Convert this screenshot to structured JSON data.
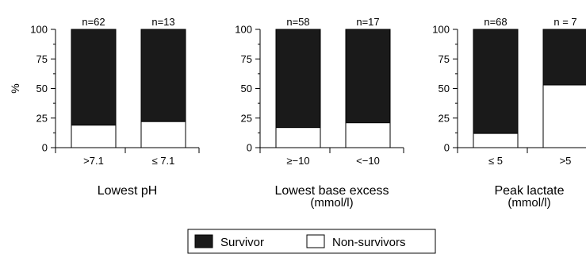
{
  "chart_data": [
    {
      "type": "bar",
      "stacked": true,
      "title": "Lowest pH",
      "subtitle": "",
      "ylabel": "%",
      "ylim": [
        0,
        100
      ],
      "yticks": [
        "0",
        "25",
        "50",
        "75",
        "100"
      ],
      "categories": [
        ">7.1",
        "≤ 7.1"
      ],
      "n_labels": [
        "n=62",
        "n=13"
      ],
      "series": [
        {
          "name": "Non-survivors",
          "values": [
            19,
            22
          ]
        },
        {
          "name": "Survivor",
          "values": [
            81,
            78
          ]
        }
      ]
    },
    {
      "type": "bar",
      "stacked": true,
      "title": "Lowest base excess",
      "subtitle": "(mmol/l)",
      "ylabel": "",
      "ylim": [
        0,
        100
      ],
      "yticks": [
        "0",
        "25",
        "50",
        "75",
        "100"
      ],
      "categories": [
        "≥−10",
        "<−10"
      ],
      "n_labels": [
        "n=58",
        "n=17"
      ],
      "series": [
        {
          "name": "Non-survivors",
          "values": [
            17,
            21
          ]
        },
        {
          "name": "Survivor",
          "values": [
            83,
            79
          ]
        }
      ]
    },
    {
      "type": "bar",
      "stacked": true,
      "title": "Peak lactate",
      "subtitle": "(mmol/l)",
      "ylabel": "",
      "ylim": [
        0,
        100
      ],
      "yticks": [
        "0",
        "25",
        "50",
        "75",
        "100"
      ],
      "categories": [
        "≤ 5",
        ">5"
      ],
      "n_labels": [
        "n=68",
        "n = 7"
      ],
      "series": [
        {
          "name": "Non-survivors",
          "values": [
            12,
            53
          ]
        },
        {
          "name": "Survivor",
          "values": [
            88,
            47
          ]
        }
      ]
    }
  ],
  "legend": {
    "items": [
      {
        "label": "Survivor",
        "color": "#1a1a1a"
      },
      {
        "label": "Non-survivors",
        "color": "#ffffff"
      }
    ],
    "placement": "bottom-center"
  },
  "colors": {
    "survivor": "#1a1a1a",
    "non_survivor": "#ffffff",
    "stroke": "#000000"
  }
}
